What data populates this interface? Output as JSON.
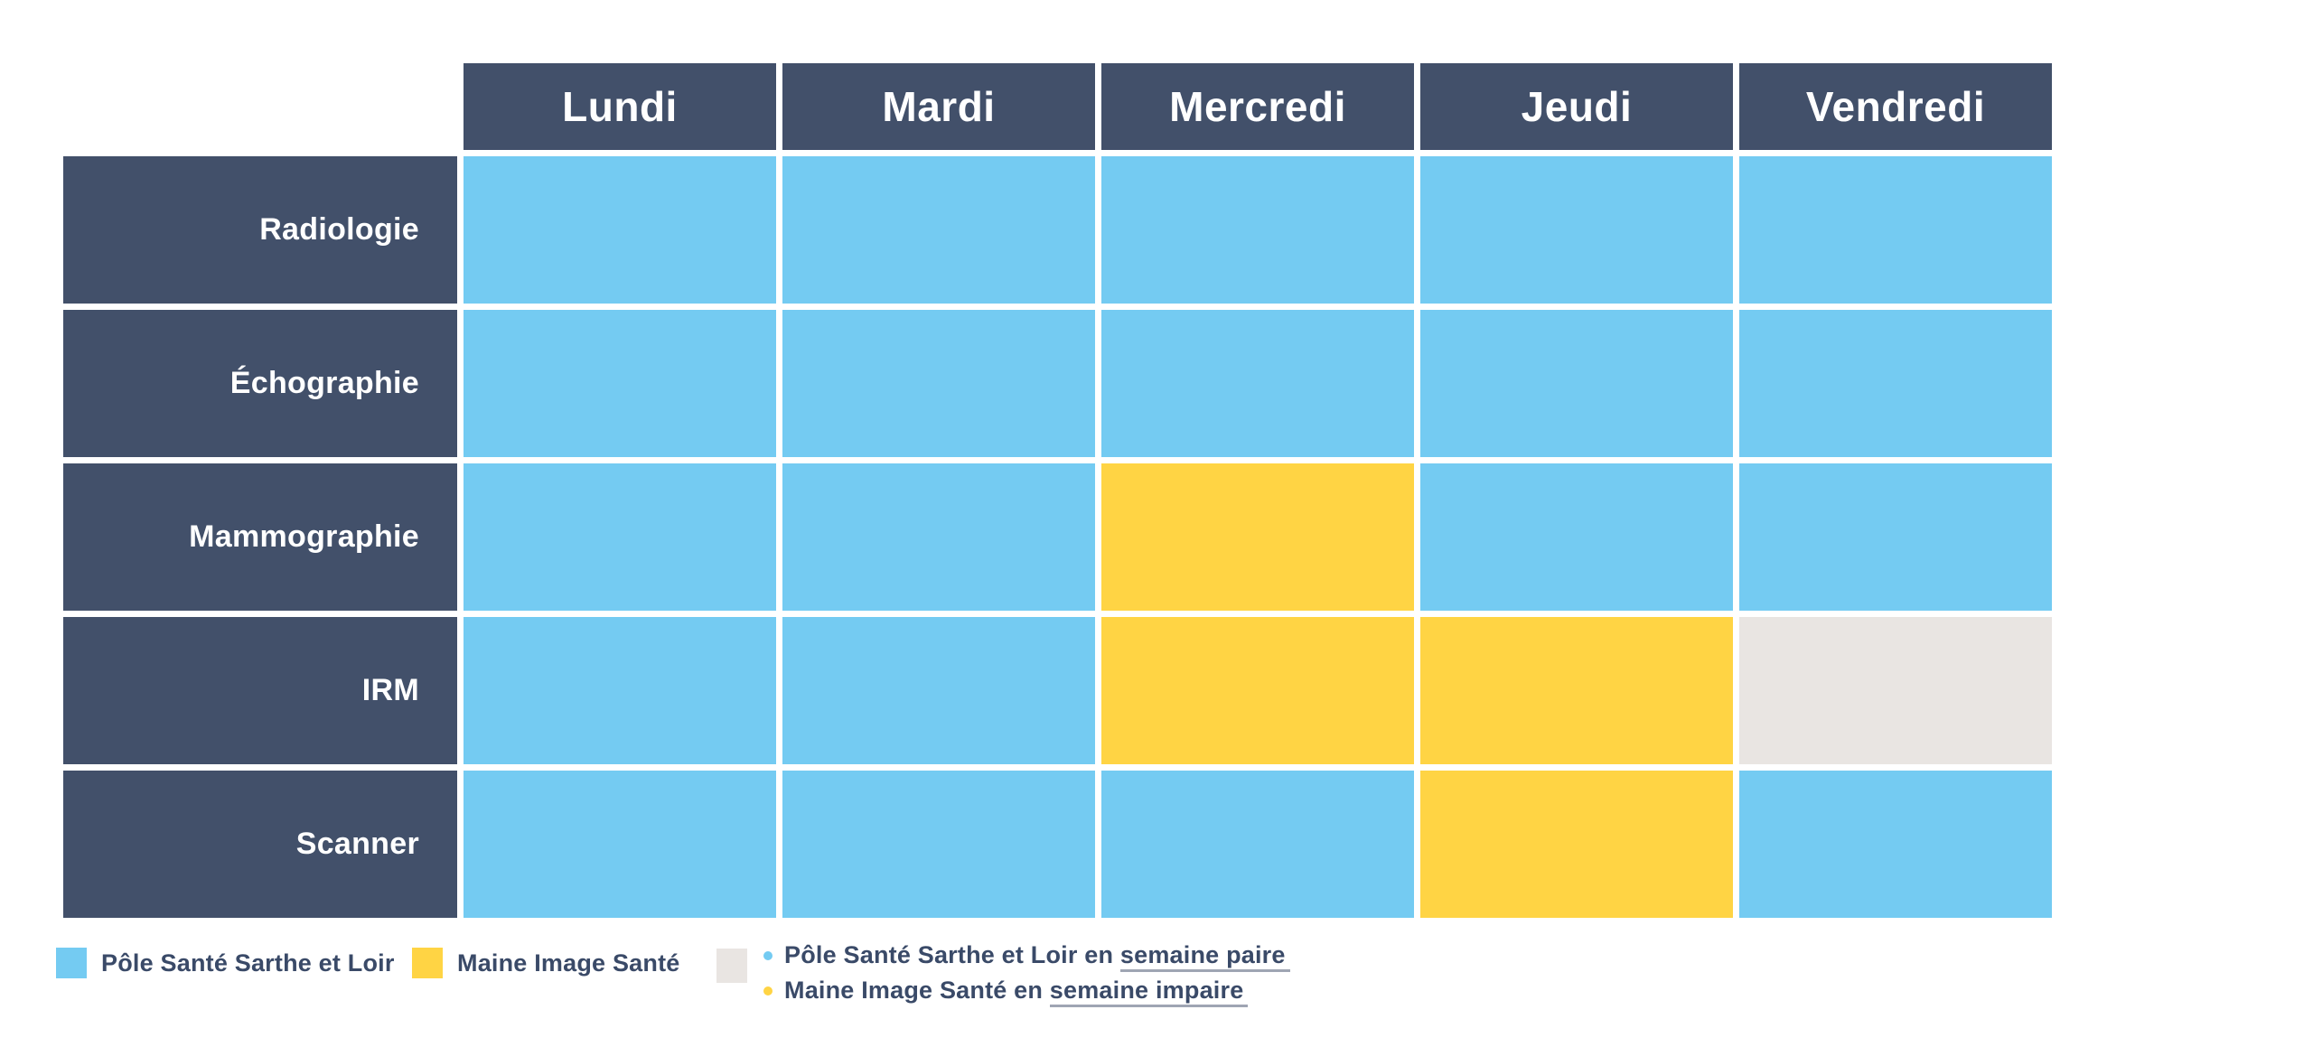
{
  "colors": {
    "header_bg": "#42506A",
    "cell_blue": "#74CBF2",
    "cell_yellow": "#FFD444",
    "cell_grey": "#E9E5E2",
    "legend_text": "#3A4A68",
    "header_text": "#FFFFFF",
    "underline": "#9FA5B3",
    "background": "#FFFFFF"
  },
  "table": {
    "columns": [
      "Lundi",
      "Mardi",
      "Mercredi",
      "Jeudi",
      "Vendredi"
    ],
    "rows": [
      {
        "label": "Radiologie",
        "cells": [
          "blue",
          "blue",
          "blue",
          "blue",
          "blue"
        ]
      },
      {
        "label": "Échographie",
        "cells": [
          "blue",
          "blue",
          "blue",
          "blue",
          "blue"
        ]
      },
      {
        "label": "Mammographie",
        "cells": [
          "blue",
          "blue",
          "yellow",
          "blue",
          "blue"
        ]
      },
      {
        "label": "IRM",
        "cells": [
          "blue",
          "blue",
          "yellow",
          "yellow",
          "grey"
        ]
      },
      {
        "label": "Scanner",
        "cells": [
          "blue",
          "blue",
          "blue",
          "yellow",
          "blue"
        ]
      }
    ]
  },
  "legend": {
    "items": [
      {
        "swatch_color_key": "blue",
        "label": "Pôle Santé Sarthe et Loir"
      },
      {
        "swatch_color_key": "yellow",
        "label": "Maine Image Santé"
      },
      {
        "swatch_color_key": "grey",
        "bullets": [
          {
            "dot_color_key": "blue",
            "prefix": "Pôle Santé Sarthe et Loir en ",
            "underlined": "semaine paire"
          },
          {
            "dot_color_key": "yellow",
            "prefix": "Maine Image Santé en ",
            "underlined": "semaine impaire"
          }
        ]
      }
    ]
  },
  "chart_data": {
    "type": "table",
    "title": "",
    "columns": [
      "Lundi",
      "Mardi",
      "Mercredi",
      "Jeudi",
      "Vendredi"
    ],
    "rows": [
      "Radiologie",
      "Échographie",
      "Mammographie",
      "IRM",
      "Scanner"
    ],
    "cells": [
      [
        "Pôle Santé Sarthe et Loir",
        "Pôle Santé Sarthe et Loir",
        "Pôle Santé Sarthe et Loir",
        "Pôle Santé Sarthe et Loir",
        "Pôle Santé Sarthe et Loir"
      ],
      [
        "Pôle Santé Sarthe et Loir",
        "Pôle Santé Sarthe et Loir",
        "Pôle Santé Sarthe et Loir",
        "Pôle Santé Sarthe et Loir",
        "Pôle Santé Sarthe et Loir"
      ],
      [
        "Pôle Santé Sarthe et Loir",
        "Pôle Santé Sarthe et Loir",
        "Maine Image Santé",
        "Pôle Santé Sarthe et Loir",
        "Pôle Santé Sarthe et Loir"
      ],
      [
        "Pôle Santé Sarthe et Loir",
        "Pôle Santé Sarthe et Loir",
        "Maine Image Santé",
        "Maine Image Santé",
        "Pôle Santé Sarthe et Loir en semaine paire / Maine Image Santé en semaine impaire"
      ],
      [
        "Pôle Santé Sarthe et Loir",
        "Pôle Santé Sarthe et Loir",
        "Pôle Santé Sarthe et Loir",
        "Maine Image Santé",
        "Pôle Santé Sarthe et Loir"
      ]
    ],
    "legend": [
      "Pôle Santé Sarthe et Loir",
      "Maine Image Santé",
      "Pôle Santé Sarthe et Loir en semaine paire / Maine Image Santé en semaine impaire"
    ],
    "legend_position": "bottom",
    "grid": "white-gaps"
  }
}
